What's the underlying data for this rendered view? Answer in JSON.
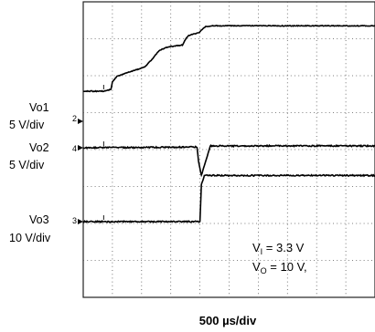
{
  "chart_data": {
    "type": "line",
    "title": "",
    "xlabel": "500 µs/div",
    "grid": true,
    "x_divisions": 10,
    "y_divisions": 8,
    "channel_labels": [
      {
        "marker": "2",
        "name": "Vo1",
        "scale": "5 V/div"
      },
      {
        "marker": "4",
        "name": "Vo2",
        "scale": "5 V/div"
      },
      {
        "marker": "3",
        "name": "Vo3",
        "scale": "10 V/div"
      }
    ],
    "annotations": [
      {
        "text_main": "V",
        "text_sub": "I",
        "text_rest": " = 3.3 V"
      },
      {
        "text_main": "V",
        "text_sub": "O",
        "text_rest": " = 10 V,"
      }
    ],
    "series": [
      {
        "name": "Vo1",
        "x_div": [
          0,
          0.7,
          0.95,
          1.0,
          1.15,
          1.5,
          2.1,
          2.4,
          2.6,
          2.9,
          3.4,
          3.5,
          3.6,
          3.8,
          4.0,
          4.1,
          4.2,
          4.4,
          10
        ],
        "y_div": [
          1.85,
          1.85,
          1.9,
          2.1,
          2.25,
          2.35,
          2.5,
          2.75,
          2.95,
          3.05,
          3.1,
          3.25,
          3.35,
          3.4,
          3.45,
          3.55,
          3.6,
          3.62,
          3.62
        ]
      },
      {
        "name": "Vo2",
        "x_div": [
          0,
          3.9,
          3.95,
          4.05,
          4.2,
          4.35,
          10
        ],
        "y_div": [
          0,
          0.02,
          -0.35,
          -0.75,
          -0.35,
          0.05,
          0.05
        ]
      },
      {
        "name": "Vo3",
        "x_div": [
          0,
          4.0,
          4.05,
          4.15,
          10
        ],
        "y_div": [
          0,
          0,
          1.0,
          1.25,
          1.25
        ]
      }
    ]
  }
}
